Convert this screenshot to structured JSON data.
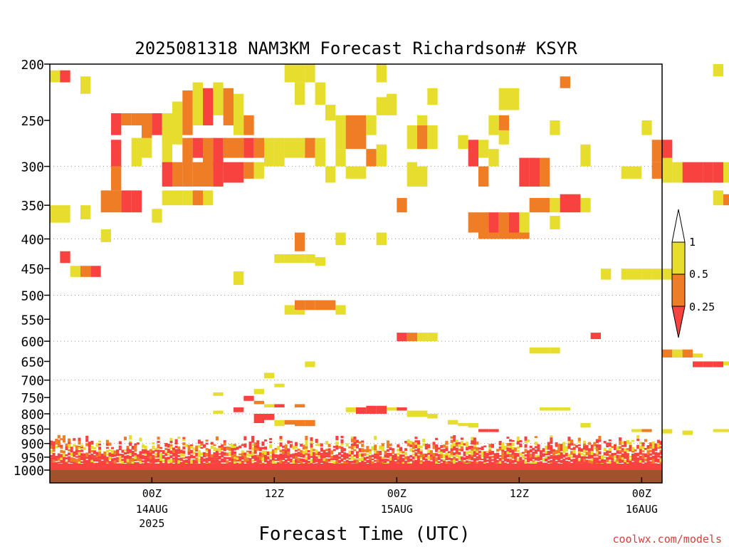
{
  "chart_data": {
    "type": "heatmap",
    "title": "2025081318 NAM3KM Forecast Richardson# KSYR",
    "xlabel": "Forecast Time (UTC)",
    "ylabel": "",
    "credit": "coolwx.com/models",
    "x_range_hours": [
      -10,
      50
    ],
    "y_range_hpa": [
      200,
      1000
    ],
    "y_scale": "log",
    "y_ticks": [
      200,
      250,
      300,
      350,
      400,
      450,
      500,
      550,
      600,
      650,
      700,
      750,
      800,
      850,
      900,
      950,
      1000
    ],
    "x_ticks": [
      {
        "hour": 0,
        "label": "00Z",
        "date": "14AUG",
        "year": "2025"
      },
      {
        "hour": 12,
        "label": "12Z",
        "date": "",
        "year": ""
      },
      {
        "hour": 24,
        "label": "00Z",
        "date": "15AUG",
        "year": ""
      },
      {
        "hour": 36,
        "label": "12Z",
        "date": "",
        "year": ""
      },
      {
        "hour": 48,
        "label": "00Z",
        "date": "16AUG",
        "year": ""
      }
    ],
    "grid_dotted_levels": [
      300,
      400,
      500,
      600,
      700,
      800,
      900
    ],
    "legend": {
      "placement": "right",
      "labels": [
        "1",
        "0.5",
        "0.25"
      ],
      "colors": {
        "lt_0_25": "#f8423f",
        "0_25_to_0_5": "#ef7d26",
        "0_5_to_1": "#e6dd2e"
      }
    },
    "ground_color": "#a0522d",
    "cells": [
      [
        -10,
        1,
        205,
        215,
        "y"
      ],
      [
        -9,
        1,
        205,
        215,
        "r"
      ],
      [
        -7,
        1,
        210,
        225,
        "y"
      ],
      [
        -4,
        1,
        243,
        265,
        "r"
      ],
      [
        -3,
        1,
        243,
        255,
        "o"
      ],
      [
        -2,
        1,
        243,
        255,
        "o"
      ],
      [
        -1,
        1,
        243,
        270,
        "o"
      ],
      [
        0,
        1,
        243,
        265,
        "r"
      ],
      [
        1,
        1,
        243,
        275,
        "y"
      ],
      [
        2,
        1,
        232,
        275,
        "y"
      ],
      [
        3,
        1,
        222,
        265,
        "o"
      ],
      [
        4,
        1,
        215,
        255,
        "y"
      ],
      [
        5,
        1,
        220,
        255,
        "r"
      ],
      [
        6,
        1,
        215,
        245,
        "y"
      ],
      [
        7,
        1,
        220,
        255,
        "o"
      ],
      [
        8,
        1,
        225,
        265,
        "y"
      ],
      [
        9,
        1,
        245,
        265,
        "o"
      ],
      [
        -2,
        1,
        268,
        300,
        "y"
      ],
      [
        -1,
        1,
        268,
        290,
        "y"
      ],
      [
        1,
        1,
        268,
        300,
        "y"
      ],
      [
        3,
        1,
        268,
        300,
        "o"
      ],
      [
        4,
        1,
        268,
        290,
        "r"
      ],
      [
        5,
        1,
        268,
        300,
        "o"
      ],
      [
        6,
        1,
        268,
        300,
        "r"
      ],
      [
        7,
        1,
        268,
        290,
        "o"
      ],
      [
        8,
        1,
        268,
        290,
        "o"
      ],
      [
        9,
        1,
        268,
        290,
        "r"
      ],
      [
        10,
        1,
        268,
        290,
        "o"
      ],
      [
        11,
        1,
        268,
        300,
        "y"
      ],
      [
        12,
        1,
        268,
        300,
        "y"
      ],
      [
        13,
        1,
        268,
        290,
        "y"
      ],
      [
        14,
        1,
        268,
        290,
        "y"
      ],
      [
        15,
        1,
        268,
        290,
        "o"
      ],
      [
        16,
        1,
        268,
        300,
        "y"
      ],
      [
        -4,
        1,
        270,
        300,
        "r"
      ],
      [
        -4,
        1,
        300,
        330,
        "o"
      ],
      [
        1,
        1,
        295,
        325,
        "r"
      ],
      [
        2,
        1,
        295,
        325,
        "o"
      ],
      [
        3,
        1,
        295,
        325,
        "o"
      ],
      [
        4,
        1,
        295,
        325,
        "o"
      ],
      [
        5,
        1,
        295,
        325,
        "o"
      ],
      [
        6,
        1,
        295,
        325,
        "r"
      ],
      [
        7,
        1,
        295,
        320,
        "r"
      ],
      [
        8,
        1,
        295,
        320,
        "r"
      ],
      [
        9,
        1,
        295,
        315,
        "o"
      ],
      [
        10,
        1,
        295,
        315,
        "y"
      ],
      [
        -5,
        1,
        330,
        360,
        "o"
      ],
      [
        -4,
        1,
        330,
        360,
        "o"
      ],
      [
        -3,
        1,
        330,
        360,
        "r"
      ],
      [
        -2,
        1,
        330,
        360,
        "r"
      ],
      [
        1,
        1,
        330,
        350,
        "y"
      ],
      [
        2,
        1,
        330,
        350,
        "y"
      ],
      [
        3,
        1,
        330,
        350,
        "y"
      ],
      [
        4,
        1,
        330,
        350,
        "o"
      ],
      [
        5,
        1,
        330,
        350,
        "y"
      ],
      [
        -10,
        2,
        350,
        375,
        "y"
      ],
      [
        -7,
        1,
        350,
        370,
        "y"
      ],
      [
        0,
        1,
        355,
        375,
        "y"
      ],
      [
        -5,
        1,
        385,
        405,
        "y"
      ],
      [
        -9,
        1,
        420,
        440,
        "r"
      ],
      [
        -8,
        1,
        445,
        465,
        "y"
      ],
      [
        -7,
        1,
        445,
        465,
        "o"
      ],
      [
        -6,
        1,
        445,
        465,
        "r"
      ],
      [
        13,
        1,
        200,
        215,
        "y"
      ],
      [
        14,
        1,
        200,
        215,
        "y"
      ],
      [
        15,
        1,
        200,
        215,
        "y"
      ],
      [
        14,
        1,
        215,
        235,
        "y"
      ],
      [
        16,
        1,
        215,
        235,
        "y"
      ],
      [
        17,
        1,
        235,
        250,
        "y"
      ],
      [
        18,
        1,
        245,
        280,
        "y"
      ],
      [
        19,
        1,
        245,
        280,
        "o"
      ],
      [
        20,
        1,
        245,
        280,
        "o"
      ],
      [
        21,
        1,
        245,
        265,
        "y"
      ],
      [
        22,
        1,
        228,
        245,
        "y"
      ],
      [
        23,
        1,
        225,
        245,
        "y"
      ],
      [
        22,
        1,
        200,
        215,
        "y"
      ],
      [
        17,
        1,
        300,
        320,
        "y"
      ],
      [
        19,
        1,
        300,
        315,
        "y"
      ],
      [
        20,
        1,
        300,
        315,
        "y"
      ],
      [
        21,
        1,
        280,
        300,
        "o"
      ],
      [
        22,
        1,
        275,
        300,
        "y"
      ],
      [
        18,
        1,
        280,
        300,
        "y"
      ],
      [
        25,
        1,
        255,
        280,
        "y"
      ],
      [
        26,
        1,
        255,
        280,
        "o"
      ],
      [
        27,
        1,
        255,
        280,
        "y"
      ],
      [
        26,
        1,
        245,
        255,
        "y"
      ],
      [
        27,
        1,
        220,
        235,
        "y"
      ],
      [
        25,
        1,
        295,
        325,
        "y"
      ],
      [
        26,
        1,
        300,
        325,
        "y"
      ],
      [
        31,
        1,
        270,
        300,
        "r"
      ],
      [
        32,
        1,
        270,
        290,
        "y"
      ],
      [
        33,
        1,
        280,
        300,
        "y"
      ],
      [
        30,
        1,
        265,
        280,
        "y"
      ],
      [
        34,
        1,
        260,
        275,
        "y"
      ],
      [
        34,
        1,
        220,
        240,
        "y"
      ],
      [
        35,
        1,
        220,
        240,
        "y"
      ],
      [
        34,
        1,
        245,
        260,
        "o"
      ],
      [
        33,
        1,
        245,
        265,
        "y"
      ],
      [
        32,
        1,
        300,
        325,
        "o"
      ],
      [
        36,
        1,
        290,
        325,
        "r"
      ],
      [
        37,
        1,
        290,
        325,
        "r"
      ],
      [
        38,
        1,
        290,
        325,
        "o"
      ],
      [
        39,
        1,
        250,
        265,
        "y"
      ],
      [
        40,
        1,
        210,
        220,
        "o"
      ],
      [
        42,
        1,
        275,
        300,
        "y"
      ],
      [
        38,
        1,
        340,
        360,
        "o"
      ],
      [
        39,
        1,
        340,
        360,
        "y"
      ],
      [
        40,
        1,
        335,
        360,
        "r"
      ],
      [
        41,
        1,
        335,
        360,
        "r"
      ],
      [
        42,
        1,
        340,
        360,
        "y"
      ],
      [
        37,
        1,
        340,
        360,
        "o"
      ],
      [
        39,
        1,
        365,
        385,
        "y"
      ],
      [
        24,
        1,
        340,
        360,
        "o"
      ],
      [
        31,
        1,
        360,
        390,
        "o"
      ],
      [
        32,
        1,
        360,
        390,
        "o"
      ],
      [
        33,
        1,
        360,
        400,
        "r"
      ],
      [
        34,
        1,
        360,
        400,
        "o"
      ],
      [
        35,
        1,
        360,
        400,
        "r"
      ],
      [
        36,
        1,
        360,
        390,
        "y"
      ],
      [
        32,
        1,
        390,
        400,
        "o"
      ],
      [
        33,
        1,
        390,
        400,
        "o"
      ],
      [
        36,
        1,
        390,
        400,
        "o"
      ],
      [
        35,
        1,
        390,
        400,
        "o"
      ],
      [
        18,
        1,
        390,
        410,
        "y"
      ],
      [
        13,
        1,
        425,
        440,
        "y"
      ],
      [
        12,
        1,
        425,
        440,
        "y"
      ],
      [
        14,
        1,
        425,
        440,
        "y"
      ],
      [
        15,
        1,
        425,
        440,
        "y"
      ],
      [
        16,
        1,
        430,
        445,
        "y"
      ],
      [
        14,
        1,
        390,
        420,
        "o"
      ],
      [
        22,
        1,
        390,
        410,
        "y"
      ],
      [
        8,
        1,
        455,
        480,
        "y"
      ],
      [
        55,
        1,
        200,
        210,
        "y"
      ],
      [
        46,
        1,
        300,
        315,
        "y"
      ],
      [
        47,
        1,
        300,
        315,
        "y"
      ],
      [
        48,
        1,
        250,
        265,
        "y"
      ],
      [
        49,
        1,
        270,
        295,
        "o"
      ],
      [
        49,
        1,
        295,
        315,
        "o"
      ],
      [
        50,
        1,
        270,
        295,
        "r"
      ],
      [
        50,
        1,
        290,
        320,
        "y"
      ],
      [
        51,
        1,
        295,
        320,
        "y"
      ],
      [
        52,
        1,
        295,
        320,
        "r"
      ],
      [
        53,
        1,
        295,
        320,
        "r"
      ],
      [
        54,
        1,
        295,
        320,
        "r"
      ],
      [
        55,
        1,
        295,
        320,
        "r"
      ],
      [
        56,
        1,
        295,
        320,
        "y"
      ],
      [
        57,
        1,
        305,
        320,
        "y"
      ],
      [
        55,
        1,
        330,
        350,
        "y"
      ],
      [
        56,
        1,
        335,
        350,
        "o"
      ],
      [
        57,
        1,
        335,
        350,
        "o"
      ],
      [
        44,
        1,
        450,
        470,
        "y"
      ],
      [
        46,
        1,
        450,
        470,
        "y"
      ],
      [
        47,
        1,
        450,
        470,
        "y"
      ],
      [
        48,
        1,
        450,
        470,
        "y"
      ],
      [
        49,
        1,
        450,
        470,
        "y"
      ],
      [
        50,
        1,
        450,
        470,
        "y"
      ],
      [
        13,
        1,
        520,
        540,
        "y"
      ],
      [
        14,
        1,
        510,
        530,
        "o"
      ],
      [
        15,
        1,
        510,
        530,
        "o"
      ],
      [
        16,
        1,
        510,
        530,
        "o"
      ],
      [
        17,
        1,
        510,
        530,
        "o"
      ],
      [
        18,
        1,
        520,
        540,
        "y"
      ],
      [
        14,
        1,
        530,
        540,
        "y"
      ],
      [
        15,
        1,
        650,
        665,
        "y"
      ],
      [
        24,
        1,
        580,
        600,
        "r"
      ],
      [
        25,
        1,
        580,
        600,
        "o"
      ],
      [
        26,
        1,
        580,
        600,
        "y"
      ],
      [
        27,
        1,
        580,
        600,
        "y"
      ],
      [
        37,
        1,
        615,
        630,
        "y"
      ],
      [
        38,
        1,
        615,
        630,
        "y"
      ],
      [
        39,
        1,
        615,
        630,
        "y"
      ],
      [
        43,
        1,
        580,
        595,
        "r"
      ],
      [
        50,
        1,
        620,
        640,
        "o"
      ],
      [
        51,
        1,
        620,
        640,
        "y"
      ],
      [
        52,
        1,
        620,
        640,
        "o"
      ],
      [
        53,
        1,
        630,
        640,
        "y"
      ],
      [
        53,
        1,
        650,
        665,
        "r"
      ],
      [
        54,
        1,
        650,
        665,
        "r"
      ],
      [
        55,
        1,
        650,
        665,
        "r"
      ],
      [
        56,
        1,
        650,
        660,
        "y"
      ],
      [
        57,
        1,
        650,
        665,
        "y"
      ]
    ],
    "boundary_layer": {
      "top_hpa": 870,
      "bottom_hpa": 990,
      "note": "dense mix of <0.25, 0.25-0.5 and 0.5-1 values near the surface"
    },
    "low_scatter": [
      [
        9,
        1,
        745,
        760,
        "r"
      ],
      [
        10,
        1,
        760,
        770,
        "o"
      ],
      [
        11,
        1,
        770,
        780,
        "y"
      ],
      [
        12,
        1,
        770,
        780,
        "r"
      ],
      [
        14,
        1,
        770,
        780,
        "o"
      ],
      [
        6,
        1,
        735,
        745,
        "y"
      ],
      [
        6,
        1,
        790,
        800,
        "y"
      ],
      [
        8,
        1,
        780,
        795,
        "r"
      ],
      [
        10,
        1,
        800,
        830,
        "r"
      ],
      [
        11,
        1,
        800,
        820,
        "r"
      ],
      [
        12,
        1,
        820,
        840,
        "y"
      ],
      [
        13,
        1,
        820,
        835,
        "o"
      ],
      [
        14,
        1,
        820,
        840,
        "o"
      ],
      [
        15,
        1,
        820,
        840,
        "o"
      ],
      [
        11,
        1,
        680,
        695,
        "y"
      ],
      [
        12,
        1,
        710,
        720,
        "y"
      ],
      [
        10,
        1,
        725,
        740,
        "y"
      ],
      [
        19,
        1,
        780,
        795,
        "y"
      ],
      [
        20,
        1,
        780,
        800,
        "r"
      ],
      [
        21,
        1,
        775,
        800,
        "r"
      ],
      [
        22,
        1,
        775,
        800,
        "r"
      ],
      [
        23,
        1,
        780,
        790,
        "y"
      ],
      [
        24,
        1,
        780,
        790,
        "r"
      ],
      [
        25,
        1,
        790,
        810,
        "y"
      ],
      [
        26,
        1,
        790,
        810,
        "y"
      ],
      [
        27,
        1,
        800,
        815,
        "y"
      ],
      [
        29,
        1,
        820,
        835,
        "y"
      ],
      [
        30,
        1,
        830,
        840,
        "y"
      ],
      [
        31,
        1,
        830,
        845,
        "y"
      ],
      [
        38,
        1,
        780,
        790,
        "y"
      ],
      [
        39,
        1,
        780,
        790,
        "y"
      ],
      [
        40,
        1,
        780,
        790,
        "y"
      ],
      [
        42,
        1,
        830,
        845,
        "y"
      ],
      [
        47,
        1,
        850,
        860,
        "y"
      ],
      [
        48,
        1,
        850,
        860,
        "o"
      ],
      [
        50,
        1,
        850,
        865,
        "y"
      ],
      [
        52,
        1,
        855,
        870,
        "y"
      ],
      [
        55,
        1,
        850,
        860,
        "y"
      ],
      [
        56,
        1,
        850,
        860,
        "y"
      ],
      [
        57,
        1,
        850,
        860,
        "y"
      ],
      [
        32,
        1,
        850,
        860,
        "r"
      ],
      [
        33,
        1,
        850,
        860,
        "r"
      ]
    ]
  }
}
